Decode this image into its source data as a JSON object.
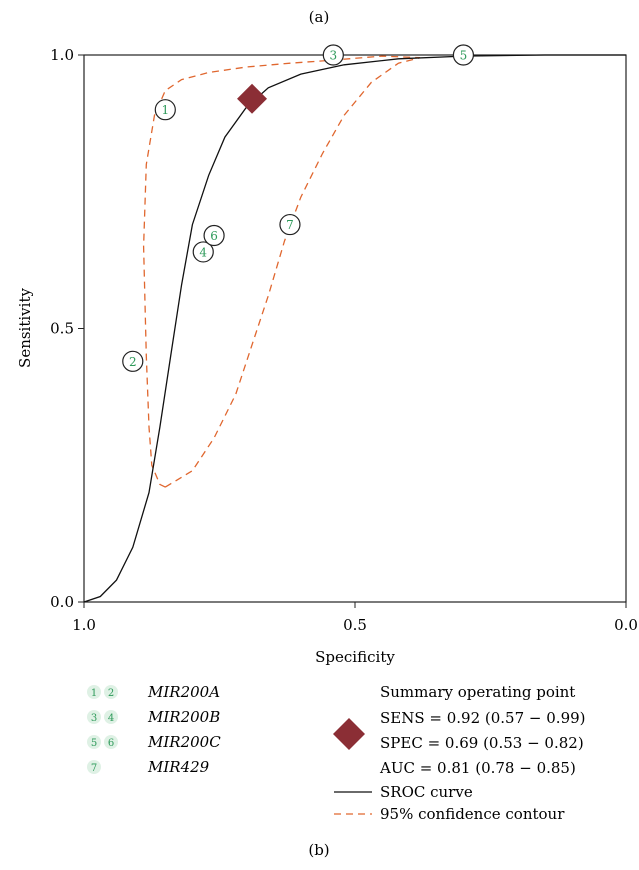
{
  "figure": {
    "label_top": "(a)",
    "label_bottom": "(b)"
  },
  "chart_data": {
    "type": "scatter",
    "xlabel": "Specificity",
    "ylabel": "Sensitivity",
    "xlim": [
      1.0,
      0.0
    ],
    "ylim": [
      0.0,
      1.0
    ],
    "x_ticks": [
      "1.0",
      "0.5",
      "0.0"
    ],
    "y_ticks": [
      "0.0",
      "0.5",
      "1.0"
    ],
    "grid": false,
    "studies": [
      {
        "id": "1",
        "specificity": 0.85,
        "sensitivity": 0.9,
        "group": "MIR200A"
      },
      {
        "id": "2",
        "specificity": 0.91,
        "sensitivity": 0.44,
        "group": "MIR200A"
      },
      {
        "id": "3",
        "specificity": 0.54,
        "sensitivity": 1.0,
        "group": "MIR200B"
      },
      {
        "id": "4",
        "specificity": 0.78,
        "sensitivity": 0.64,
        "group": "MIR200B"
      },
      {
        "id": "5",
        "specificity": 0.3,
        "sensitivity": 1.0,
        "group": "MIR200C"
      },
      {
        "id": "6",
        "specificity": 0.76,
        "sensitivity": 0.67,
        "group": "MIR200C"
      },
      {
        "id": "7",
        "specificity": 0.62,
        "sensitivity": 0.69,
        "group": "MIR429"
      }
    ],
    "summary_point": {
      "specificity": 0.69,
      "sensitivity": 0.92,
      "color": "#8b2e35"
    },
    "sroc_curve": {
      "color": "#111111",
      "points": [
        [
          1.0,
          0.0
        ],
        [
          0.97,
          0.01
        ],
        [
          0.94,
          0.04
        ],
        [
          0.91,
          0.1
        ],
        [
          0.88,
          0.2
        ],
        [
          0.86,
          0.32
        ],
        [
          0.84,
          0.45
        ],
        [
          0.82,
          0.58
        ],
        [
          0.8,
          0.69
        ],
        [
          0.77,
          0.78
        ],
        [
          0.74,
          0.85
        ],
        [
          0.7,
          0.905
        ],
        [
          0.66,
          0.94
        ],
        [
          0.6,
          0.965
        ],
        [
          0.52,
          0.982
        ],
        [
          0.42,
          0.993
        ],
        [
          0.3,
          0.998
        ],
        [
          0.15,
          1.0
        ],
        [
          0.0,
          1.0
        ]
      ]
    },
    "confidence_contour": {
      "color": "#e0672f",
      "points": [
        [
          0.85,
          0.21
        ],
        [
          0.8,
          0.24
        ],
        [
          0.76,
          0.3
        ],
        [
          0.72,
          0.38
        ],
        [
          0.69,
          0.47
        ],
        [
          0.66,
          0.56
        ],
        [
          0.63,
          0.66
        ],
        [
          0.6,
          0.74
        ],
        [
          0.56,
          0.82
        ],
        [
          0.52,
          0.89
        ],
        [
          0.47,
          0.95
        ],
        [
          0.42,
          0.985
        ],
        [
          0.38,
          0.995
        ],
        [
          0.45,
          0.998
        ],
        [
          0.55,
          0.99
        ],
        [
          0.62,
          0.985
        ],
        [
          0.7,
          0.978
        ],
        [
          0.77,
          0.968
        ],
        [
          0.82,
          0.955
        ],
        [
          0.85,
          0.935
        ],
        [
          0.87,
          0.89
        ],
        [
          0.885,
          0.8
        ],
        [
          0.89,
          0.65
        ],
        [
          0.885,
          0.45
        ],
        [
          0.88,
          0.32
        ],
        [
          0.875,
          0.25
        ],
        [
          0.86,
          0.215
        ],
        [
          0.85,
          0.21
        ]
      ]
    },
    "legend_groups": [
      {
        "nums": [
          "1",
          "2"
        ],
        "label": "MIR200A"
      },
      {
        "nums": [
          "3",
          "4"
        ],
        "label": "MIR200B"
      },
      {
        "nums": [
          "5",
          "6"
        ],
        "label": "MIR200C"
      },
      {
        "nums": [
          "7"
        ],
        "label": "MIR429"
      }
    ],
    "summary_legend": {
      "title": "Summary operating point",
      "sens": "SENS = 0.92 (0.57 − 0.99)",
      "spec": "SPEC = 0.69 (0.53 − 0.82)",
      "auc": "AUC = 0.81 (0.78 − 0.85)"
    },
    "line_legend": [
      {
        "label": "SROC curve",
        "color": "#111111",
        "dashed": false
      },
      {
        "label": "95% confidence contour",
        "color": "#e0672f",
        "dashed": true
      }
    ],
    "study_number_color": "#2e9a5a",
    "study_number_bg": "#dff1e5"
  }
}
